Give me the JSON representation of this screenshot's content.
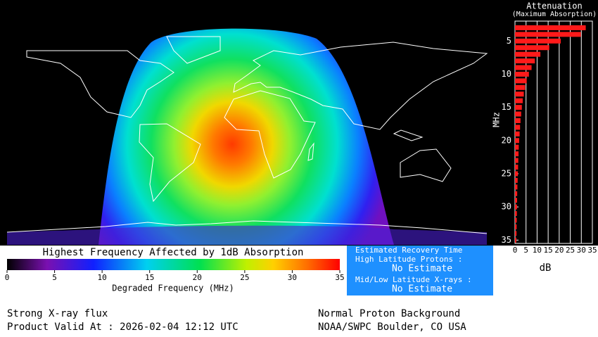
{
  "chart_data": [
    {
      "type": "heatmap",
      "title": "Highest Frequency Affected by 1dB Absorption",
      "colorbar_label": "Degraded Frequency (MHz)",
      "colorbar_lim": [
        0,
        35
      ],
      "colorbar_ticks": [
        0,
        5,
        10,
        15,
        20,
        25,
        30,
        35
      ]
    },
    {
      "type": "bar",
      "orientation": "horizontal",
      "title": "Attenuation",
      "subtitle": "(Maximum Absorption)",
      "ylabel": "MHz",
      "xlabel": "dB",
      "color": "#ff1a1a",
      "x": [
        3,
        4,
        5,
        6,
        7,
        8,
        9,
        10,
        11,
        12,
        13,
        14,
        15,
        16,
        17,
        18,
        19,
        20,
        21,
        22,
        23,
        24,
        25,
        26,
        27,
        28,
        29,
        30,
        31,
        32,
        33,
        34,
        35
      ],
      "values": [
        32,
        29.8,
        20.7,
        15.5,
        11.5,
        9,
        7.5,
        6.3,
        5.3,
        4.6,
        4,
        3.5,
        3.1,
        2.8,
        2.5,
        2.3,
        2.1,
        1.9,
        1.7,
        1.6,
        1.5,
        1.4,
        1.3,
        1.2,
        1.1,
        1,
        0.95,
        0.9,
        0.85,
        0.8,
        0.75,
        0.7,
        0.65
      ],
      "xlim": [
        0,
        35
      ],
      "xticks": [
        0,
        5,
        10,
        15,
        20,
        25,
        30,
        35
      ],
      "ylim": [
        2,
        35.5
      ],
      "yticks": [
        5,
        10,
        15,
        20,
        25,
        30,
        35
      ]
    }
  ],
  "recovery": {
    "title": "Estimated Recovery Time",
    "high_label": "High Latitude Protons :",
    "high_value": "No Estimate",
    "mid_label": "Mid/Low Latitude X-rays :",
    "mid_value": "No Estimate"
  },
  "footer": {
    "status_left": "Strong X-ray flux",
    "valid": "Product Valid At : 2026-02-04 12:12 UTC",
    "status_right": "Normal Proton Background",
    "source": "NOAA/SWPC Boulder, CO USA"
  }
}
